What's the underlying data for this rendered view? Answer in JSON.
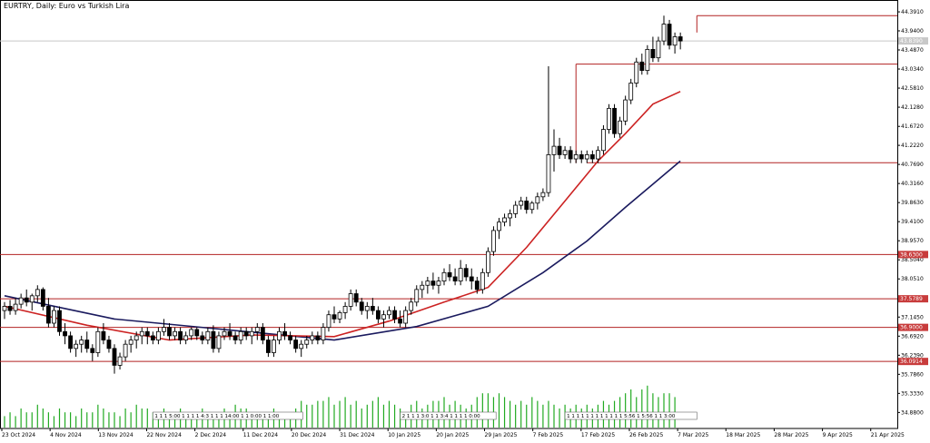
{
  "chart_data": {
    "type": "candlestick",
    "title": "EURTRY, Daily: Euro vs Turkish Lira",
    "current_price_tag": "43.8390",
    "ylim": [
      34.5,
      44.5
    ],
    "y_ticks": [
      "44.3910",
      "43.9400",
      "43.4870",
      "43.0340",
      "42.5810",
      "42.1280",
      "41.6720",
      "41.2220",
      "40.7690",
      "40.3160",
      "39.8630",
      "39.4100",
      "38.9570",
      "38.5040",
      "38.0510",
      "37.5980",
      "37.1450",
      "36.6920",
      "36.2390",
      "35.7860",
      "35.3330",
      "34.8800"
    ],
    "x_labels": [
      "23 Oct 2024",
      "4 Nov 2024",
      "13 Nov 2024",
      "22 Nov 2024",
      "2 Dec 2024",
      "11 Dec 2024",
      "20 Dec 2024",
      "31 Dec 2024",
      "10 Jan 2025",
      "20 Jan 2025",
      "29 Jan 2025",
      "7 Feb 2025",
      "17 Feb 2025",
      "26 Feb 2025",
      "7 Mar 2025",
      "18 Mar 2025",
      "28 Mar 2025",
      "9 Apr 2025",
      "21 Apr 2025"
    ],
    "horizontal_levels": [
      {
        "label": "38.6300",
        "value": 38.63
      },
      {
        "label": "37.5789",
        "value": 37.5789
      },
      {
        "label": "36.9000",
        "value": 36.9
      },
      {
        "label": "36.0914",
        "value": 36.0914
      }
    ],
    "boxes": [
      {
        "value": 44.3,
        "from_index": 126,
        "to_index": 164
      },
      {
        "value": 43.15,
        "from_index": 104,
        "to_index": 164
      },
      {
        "value": 40.81,
        "from_index": 106,
        "to_index": 164
      }
    ],
    "session_marker_groups": [
      {
        "from_index": 27,
        "text": "1 1 1 5:00 1 1 1 1 4:3 1 1 1 14:00 1 1 0:00 1 1:00"
      },
      {
        "from_index": 72,
        "text": "2 1 1 1 3:0 1 1 3:4 1 1 1 1 0:00"
      },
      {
        "from_index": 102,
        "text": "1 1 1 1 1 1 1 1 1 1 1 1 5:56 1 5:56 1 1 3:00"
      }
    ],
    "candles": [
      [
        37.3,
        37.5,
        37.1,
        37.4
      ],
      [
        37.4,
        37.55,
        37.2,
        37.3
      ],
      [
        37.3,
        37.6,
        37.2,
        37.45
      ],
      [
        37.45,
        37.7,
        37.35,
        37.6
      ],
      [
        37.6,
        37.8,
        37.4,
        37.5
      ],
      [
        37.5,
        37.7,
        37.3,
        37.65
      ],
      [
        37.65,
        37.9,
        37.5,
        37.8
      ],
      [
        37.8,
        37.85,
        37.3,
        37.4
      ],
      [
        37.4,
        37.6,
        36.9,
        37.0
      ],
      [
        37.0,
        37.4,
        36.9,
        37.3
      ],
      [
        37.3,
        37.4,
        36.7,
        36.8
      ],
      [
        36.8,
        37.0,
        36.5,
        36.7
      ],
      [
        36.7,
        36.8,
        36.3,
        36.4
      ],
      [
        36.4,
        36.6,
        36.2,
        36.5
      ],
      [
        36.5,
        36.7,
        36.3,
        36.6
      ],
      [
        36.6,
        36.8,
        36.3,
        36.4
      ],
      [
        36.4,
        36.5,
        36.1,
        36.3
      ],
      [
        36.3,
        36.9,
        36.2,
        36.8
      ],
      [
        36.8,
        37.0,
        36.5,
        36.6
      ],
      [
        36.6,
        36.7,
        36.3,
        36.4
      ],
      [
        36.4,
        36.5,
        35.8,
        36.0
      ],
      [
        36.0,
        36.3,
        35.9,
        36.2
      ],
      [
        36.2,
        36.6,
        36.1,
        36.5
      ],
      [
        36.5,
        36.7,
        36.3,
        36.6
      ],
      [
        36.6,
        36.8,
        36.4,
        36.7
      ],
      [
        36.7,
        36.9,
        36.5,
        36.8
      ],
      [
        36.8,
        36.9,
        36.5,
        36.7
      ],
      [
        36.7,
        36.8,
        36.5,
        36.6
      ],
      [
        36.6,
        36.9,
        36.5,
        36.8
      ],
      [
        36.8,
        37.1,
        36.7,
        36.9
      ],
      [
        36.9,
        37.0,
        36.6,
        36.7
      ],
      [
        36.7,
        36.9,
        36.6,
        36.8
      ],
      [
        36.8,
        36.9,
        36.5,
        36.6
      ],
      [
        36.6,
        36.8,
        36.5,
        36.7
      ],
      [
        36.7,
        36.9,
        36.6,
        36.85
      ],
      [
        36.85,
        36.9,
        36.6,
        36.7
      ],
      [
        36.7,
        36.8,
        36.5,
        36.6
      ],
      [
        36.6,
        36.9,
        36.5,
        36.8
      ],
      [
        36.8,
        36.95,
        36.3,
        36.4
      ],
      [
        36.4,
        36.8,
        36.3,
        36.7
      ],
      [
        36.7,
        36.9,
        36.6,
        36.8
      ],
      [
        36.8,
        37.0,
        36.6,
        36.7
      ],
      [
        36.7,
        36.8,
        36.5,
        36.6
      ],
      [
        36.6,
        36.9,
        36.5,
        36.8
      ],
      [
        36.8,
        36.9,
        36.6,
        36.7
      ],
      [
        36.7,
        36.9,
        36.5,
        36.8
      ],
      [
        36.8,
        37.0,
        36.6,
        36.9
      ],
      [
        36.9,
        37.0,
        36.5,
        36.6
      ],
      [
        36.6,
        36.7,
        36.2,
        36.3
      ],
      [
        36.3,
        36.7,
        36.2,
        36.6
      ],
      [
        36.6,
        36.9,
        36.5,
        36.8
      ],
      [
        36.8,
        37.0,
        36.6,
        36.7
      ],
      [
        36.7,
        36.8,
        36.5,
        36.6
      ],
      [
        36.6,
        36.7,
        36.3,
        36.4
      ],
      [
        36.4,
        36.6,
        36.2,
        36.5
      ],
      [
        36.5,
        36.7,
        36.4,
        36.6
      ],
      [
        36.6,
        36.8,
        36.5,
        36.7
      ],
      [
        36.7,
        36.8,
        36.5,
        36.6
      ],
      [
        36.6,
        37.0,
        36.5,
        36.9
      ],
      [
        36.9,
        37.3,
        36.8,
        37.2
      ],
      [
        37.2,
        37.4,
        37.0,
        37.1
      ],
      [
        37.1,
        37.3,
        37.0,
        37.25
      ],
      [
        37.25,
        37.5,
        37.1,
        37.4
      ],
      [
        37.4,
        37.8,
        37.3,
        37.7
      ],
      [
        37.7,
        37.8,
        37.4,
        37.5
      ],
      [
        37.5,
        37.6,
        37.2,
        37.3
      ],
      [
        37.3,
        37.5,
        37.1,
        37.4
      ],
      [
        37.4,
        37.6,
        37.2,
        37.3
      ],
      [
        37.3,
        37.4,
        37.0,
        37.1
      ],
      [
        37.1,
        37.3,
        36.9,
        37.2
      ],
      [
        37.2,
        37.4,
        37.1,
        37.3
      ],
      [
        37.3,
        37.4,
        37.0,
        37.1
      ],
      [
        37.1,
        37.3,
        36.9,
        37.0
      ],
      [
        37.0,
        37.4,
        36.9,
        37.3
      ],
      [
        37.3,
        37.6,
        37.2,
        37.5
      ],
      [
        37.5,
        37.9,
        37.4,
        37.8
      ],
      [
        37.8,
        38.0,
        37.6,
        37.9
      ],
      [
        37.9,
        38.1,
        37.7,
        38.0
      ],
      [
        38.0,
        38.2,
        37.8,
        37.9
      ],
      [
        37.9,
        38.1,
        37.7,
        38.0
      ],
      [
        38.0,
        38.3,
        37.9,
        38.2
      ],
      [
        38.2,
        38.4,
        38.0,
        38.1
      ],
      [
        38.1,
        38.3,
        37.9,
        38.0
      ],
      [
        38.0,
        38.5,
        37.9,
        38.3
      ],
      [
        38.3,
        38.4,
        38.0,
        38.1
      ],
      [
        38.1,
        38.3,
        37.8,
        38.0
      ],
      [
        38.0,
        38.1,
        37.7,
        37.8
      ],
      [
        37.8,
        38.3,
        37.7,
        38.2
      ],
      [
        38.2,
        38.8,
        38.1,
        38.7
      ],
      [
        38.7,
        39.3,
        38.6,
        39.2
      ],
      [
        39.2,
        39.5,
        39.0,
        39.4
      ],
      [
        39.4,
        39.6,
        39.3,
        39.5
      ],
      [
        39.5,
        39.7,
        39.3,
        39.6
      ],
      [
        39.6,
        39.9,
        39.5,
        39.8
      ],
      [
        39.8,
        40.0,
        39.7,
        39.9
      ],
      [
        39.9,
        40.0,
        39.6,
        39.7
      ],
      [
        39.7,
        39.9,
        39.6,
        39.85
      ],
      [
        39.85,
        40.1,
        39.7,
        40.0
      ],
      [
        40.0,
        40.2,
        39.9,
        40.1
      ],
      [
        40.1,
        43.1,
        40.0,
        41.0
      ],
      [
        41.0,
        41.6,
        40.6,
        41.2
      ],
      [
        41.2,
        41.4,
        40.9,
        41.0
      ],
      [
        41.0,
        41.2,
        40.9,
        41.1
      ],
      [
        41.1,
        41.2,
        40.8,
        40.9
      ],
      [
        40.9,
        41.1,
        40.8,
        41.0
      ],
      [
        41.0,
        41.1,
        40.8,
        40.9
      ],
      [
        40.9,
        41.1,
        40.8,
        41.0
      ],
      [
        41.0,
        41.1,
        40.8,
        40.9
      ],
      [
        40.9,
        41.2,
        40.8,
        41.1
      ],
      [
        41.1,
        41.7,
        41.0,
        41.6
      ],
      [
        41.6,
        42.2,
        41.5,
        42.1
      ],
      [
        42.1,
        42.2,
        41.4,
        41.5
      ],
      [
        41.5,
        41.9,
        41.4,
        41.8
      ],
      [
        41.8,
        42.4,
        41.7,
        42.3
      ],
      [
        42.3,
        42.8,
        42.2,
        42.7
      ],
      [
        42.7,
        43.3,
        42.6,
        43.2
      ],
      [
        43.2,
        43.4,
        42.9,
        43.0
      ],
      [
        43.0,
        43.6,
        42.9,
        43.5
      ],
      [
        43.5,
        43.8,
        43.2,
        43.3
      ],
      [
        43.3,
        43.8,
        43.2,
        43.7
      ],
      [
        43.7,
        44.3,
        43.6,
        44.1
      ],
      [
        44.1,
        44.2,
        43.5,
        43.6
      ],
      [
        43.6,
        43.9,
        43.4,
        43.8
      ],
      [
        43.8,
        43.9,
        43.5,
        43.7
      ]
    ],
    "ma_fast": [
      {
        "i": 0,
        "v": 37.4
      },
      {
        "i": 15,
        "v": 36.95
      },
      {
        "i": 30,
        "v": 36.6
      },
      {
        "i": 45,
        "v": 36.72
      },
      {
        "i": 60,
        "v": 36.68
      },
      {
        "i": 70,
        "v": 37.05
      },
      {
        "i": 80,
        "v": 37.5
      },
      {
        "i": 88,
        "v": 37.85
      },
      {
        "i": 95,
        "v": 38.8
      },
      {
        "i": 102,
        "v": 39.9
      },
      {
        "i": 108,
        "v": 40.85
      },
      {
        "i": 113,
        "v": 41.5
      },
      {
        "i": 118,
        "v": 42.2
      },
      {
        "i": 123,
        "v": 42.5
      }
    ],
    "ma_slow": [
      {
        "i": 0,
        "v": 37.65
      },
      {
        "i": 20,
        "v": 37.1
      },
      {
        "i": 40,
        "v": 36.85
      },
      {
        "i": 60,
        "v": 36.6
      },
      {
        "i": 75,
        "v": 36.92
      },
      {
        "i": 88,
        "v": 37.4
      },
      {
        "i": 98,
        "v": 38.2
      },
      {
        "i": 106,
        "v": 38.95
      },
      {
        "i": 113,
        "v": 39.75
      },
      {
        "i": 118,
        "v": 40.3
      },
      {
        "i": 123,
        "v": 40.85
      }
    ],
    "volumes": [
      3,
      4,
      3,
      5,
      4,
      4,
      6,
      5,
      4,
      3,
      5,
      4,
      4,
      3,
      5,
      4,
      4,
      6,
      5,
      4,
      4,
      3,
      5,
      4,
      6,
      5,
      5,
      4,
      3,
      5,
      4,
      4,
      5,
      3,
      4,
      4,
      5,
      4,
      4,
      3,
      5,
      4,
      6,
      5,
      5,
      4,
      3,
      4,
      4,
      5,
      4,
      3,
      4,
      5,
      7,
      6,
      6,
      7,
      7,
      8,
      6,
      7,
      8,
      6,
      7,
      5,
      6,
      7,
      8,
      6,
      7,
      6,
      5,
      4,
      6,
      7,
      5,
      6,
      7,
      7,
      8,
      6,
      7,
      6,
      5,
      6,
      8,
      9,
      9,
      8,
      9,
      8,
      7,
      6,
      7,
      6,
      8,
      7,
      6,
      7,
      6,
      5,
      6,
      5,
      6,
      5,
      6,
      5,
      6,
      7,
      6,
      7,
      8,
      9,
      10,
      8,
      10,
      11,
      9,
      8,
      9,
      9,
      8
    ]
  }
}
